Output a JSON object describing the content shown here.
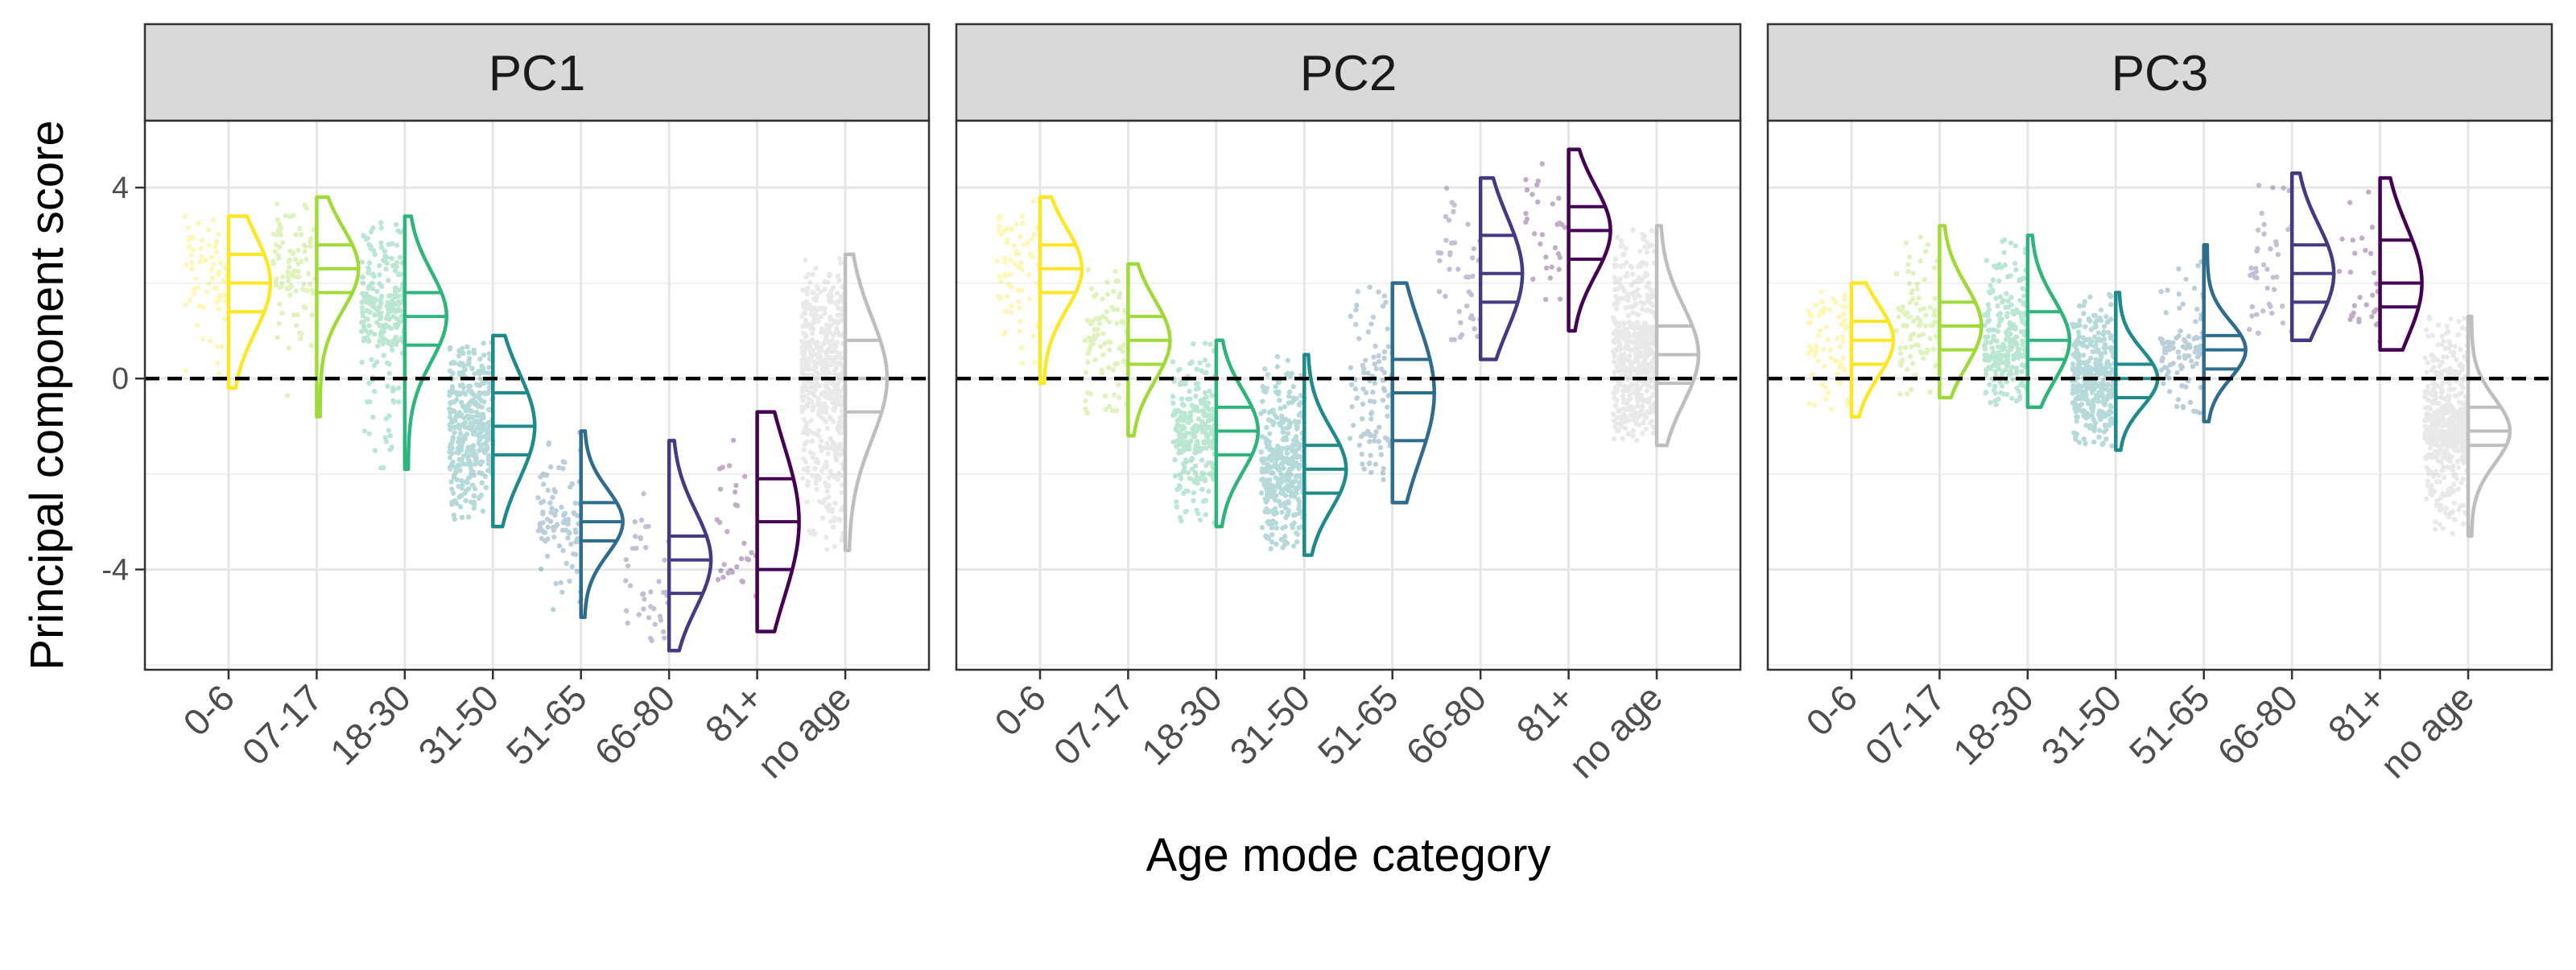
{
  "chart_data": {
    "type": "scatter",
    "subtype": "raincloud (half-violin with quartile lines + jittered points), faceted",
    "title": "",
    "xlabel": "Age mode category",
    "ylabel": "Principal component score",
    "ylim": [
      -6.1,
      5.4
    ],
    "yticks": [
      -4,
      0,
      4
    ],
    "ytick_labels": [
      "-4",
      "0",
      "4"
    ],
    "reference_line": {
      "y": 0,
      "style": "dashed",
      "color": "#000000"
    },
    "grid": true,
    "legend": "none",
    "categories": [
      "0-6",
      "07-17",
      "18-30",
      "31-50",
      "51-65",
      "66-80",
      "81+",
      "no age"
    ],
    "category_colors": [
      "#FDE725",
      "#A0DA39",
      "#2FB47C",
      "#1F8A8C",
      "#2E6C8E",
      "#443A83",
      "#440154",
      "#BEBEBE"
    ],
    "point_counts": [
      110,
      150,
      420,
      600,
      160,
      70,
      50,
      900
    ],
    "panels": [
      {
        "label": "PC1",
        "groups": [
          {
            "category": "0-6",
            "min": -0.2,
            "q1": 1.4,
            "median": 2.0,
            "q3": 2.6,
            "max": 3.4
          },
          {
            "category": "07-17",
            "min": -0.8,
            "q1": 1.8,
            "median": 2.3,
            "q3": 2.8,
            "max": 3.8
          },
          {
            "category": "18-30",
            "min": -1.9,
            "q1": 0.7,
            "median": 1.3,
            "q3": 1.8,
            "max": 3.4
          },
          {
            "category": "31-50",
            "min": -3.1,
            "q1": -1.6,
            "median": -1.0,
            "q3": -0.3,
            "max": 0.9
          },
          {
            "category": "51-65",
            "min": -5.0,
            "q1": -3.4,
            "median": -3.0,
            "q3": -2.6,
            "max": -1.1
          },
          {
            "category": "66-80",
            "min": -5.7,
            "q1": -4.5,
            "median": -3.8,
            "q3": -3.3,
            "max": -1.3
          },
          {
            "category": "81+",
            "min": -5.3,
            "q1": -4.0,
            "median": -3.0,
            "q3": -2.1,
            "max": -0.7
          },
          {
            "category": "no age",
            "min": -3.6,
            "q1": -0.7,
            "median": 0.0,
            "q3": 0.8,
            "max": 2.6
          }
        ]
      },
      {
        "label": "PC2",
        "groups": [
          {
            "category": "0-6",
            "min": -0.1,
            "q1": 1.8,
            "median": 2.3,
            "q3": 2.8,
            "max": 3.8
          },
          {
            "category": "07-17",
            "min": -1.2,
            "q1": 0.3,
            "median": 0.8,
            "q3": 1.3,
            "max": 2.4
          },
          {
            "category": "18-30",
            "min": -3.1,
            "q1": -1.6,
            "median": -1.1,
            "q3": -0.6,
            "max": 0.8
          },
          {
            "category": "31-50",
            "min": -3.7,
            "q1": -2.4,
            "median": -1.9,
            "q3": -1.4,
            "max": 0.5
          },
          {
            "category": "51-65",
            "min": -2.6,
            "q1": -1.3,
            "median": -0.3,
            "q3": 0.4,
            "max": 2.0
          },
          {
            "category": "66-80",
            "min": 0.4,
            "q1": 1.6,
            "median": 2.2,
            "q3": 3.0,
            "max": 4.2
          },
          {
            "category": "81+",
            "min": 1.0,
            "q1": 2.5,
            "median": 3.1,
            "q3": 3.6,
            "max": 4.8
          },
          {
            "category": "no age",
            "min": -1.4,
            "q1": -0.1,
            "median": 0.5,
            "q3": 1.1,
            "max": 3.2
          }
        ]
      },
      {
        "label": "PC3",
        "groups": [
          {
            "category": "0-6",
            "min": -0.8,
            "q1": 0.3,
            "median": 0.8,
            "q3": 1.2,
            "max": 2.0
          },
          {
            "category": "07-17",
            "min": -0.4,
            "q1": 0.6,
            "median": 1.1,
            "q3": 1.6,
            "max": 3.2
          },
          {
            "category": "18-30",
            "min": -0.6,
            "q1": 0.4,
            "median": 0.8,
            "q3": 1.4,
            "max": 3.0
          },
          {
            "category": "31-50",
            "min": -1.5,
            "q1": -0.4,
            "median": 0.0,
            "q3": 0.3,
            "max": 1.8
          },
          {
            "category": "51-65",
            "min": -0.9,
            "q1": 0.2,
            "median": 0.6,
            "q3": 0.9,
            "max": 2.8
          },
          {
            "category": "66-80",
            "min": 0.8,
            "q1": 1.6,
            "median": 2.2,
            "q3": 2.8,
            "max": 4.3
          },
          {
            "category": "81+",
            "min": 0.6,
            "q1": 1.5,
            "median": 2.0,
            "q3": 2.9,
            "max": 4.2
          },
          {
            "category": "no age",
            "min": -3.3,
            "q1": -1.4,
            "median": -1.1,
            "q3": -0.6,
            "max": 1.3
          }
        ]
      }
    ]
  }
}
